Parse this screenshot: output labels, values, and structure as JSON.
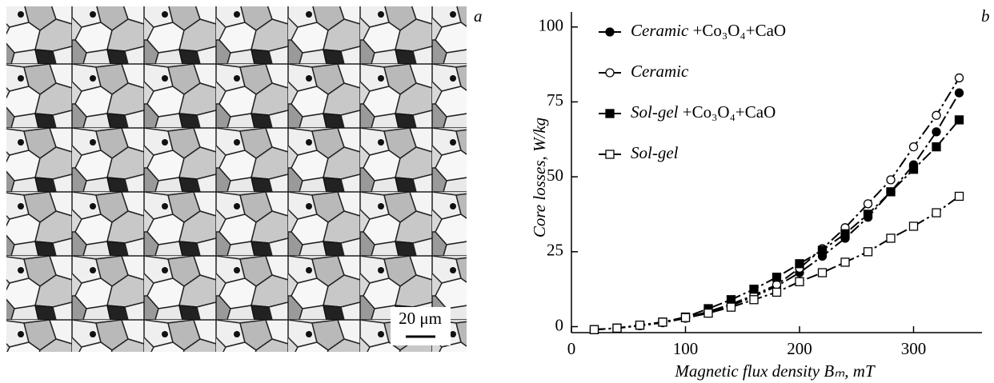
{
  "panel_a": {
    "label": "a",
    "scale_bar": "20 μm"
  },
  "chart_data": {
    "type": "line",
    "panel_label": "b",
    "x_label": "Magnetic flux density Bₘ, mT",
    "y_label": "Core losses, W/kg",
    "x": [
      20,
      40,
      60,
      80,
      100,
      120,
      140,
      160,
      180,
      200,
      220,
      240,
      260,
      280,
      300,
      320,
      340
    ],
    "xlim": [
      0,
      360
    ],
    "ylim": [
      -2,
      105
    ],
    "xticks": [
      0,
      100,
      200,
      300
    ],
    "yticks": [
      0,
      25,
      50,
      75,
      100
    ],
    "series": [
      {
        "name": "Ceramic +Co₃O₄+CaO",
        "color": "#000000",
        "marker": "filled-circle",
        "values": [
          -1,
          -0.5,
          0.3,
          1.3,
          2.8,
          4.5,
          7,
          10,
          13.5,
          18,
          23.5,
          29.5,
          36.5,
          45,
          54,
          65,
          78
        ]
      },
      {
        "name": "Ceramic",
        "color": "#000000",
        "marker": "open-circle",
        "values": [
          -1,
          -0.5,
          0.3,
          1.5,
          3,
          5,
          7.5,
          10.5,
          14,
          19.5,
          26,
          33,
          41,
          49,
          60,
          70.5,
          83
        ]
      },
      {
        "name": "Sol-gel +Co₃O₄+CaO",
        "color": "#000000",
        "marker": "filled-square",
        "values": [
          -1,
          -0.5,
          0.5,
          1.5,
          3.2,
          6,
          9,
          12.5,
          16.5,
          21,
          25.5,
          31,
          37.5,
          45,
          52.5,
          60,
          69
        ]
      },
      {
        "name": "Sol-gel",
        "color": "#000000",
        "marker": "open-square",
        "values": [
          -1,
          -0.5,
          0.5,
          1.5,
          3,
          4.5,
          6.5,
          9,
          11.5,
          15,
          18,
          21.5,
          25,
          29.5,
          33.5,
          38,
          43.5
        ]
      }
    ]
  }
}
